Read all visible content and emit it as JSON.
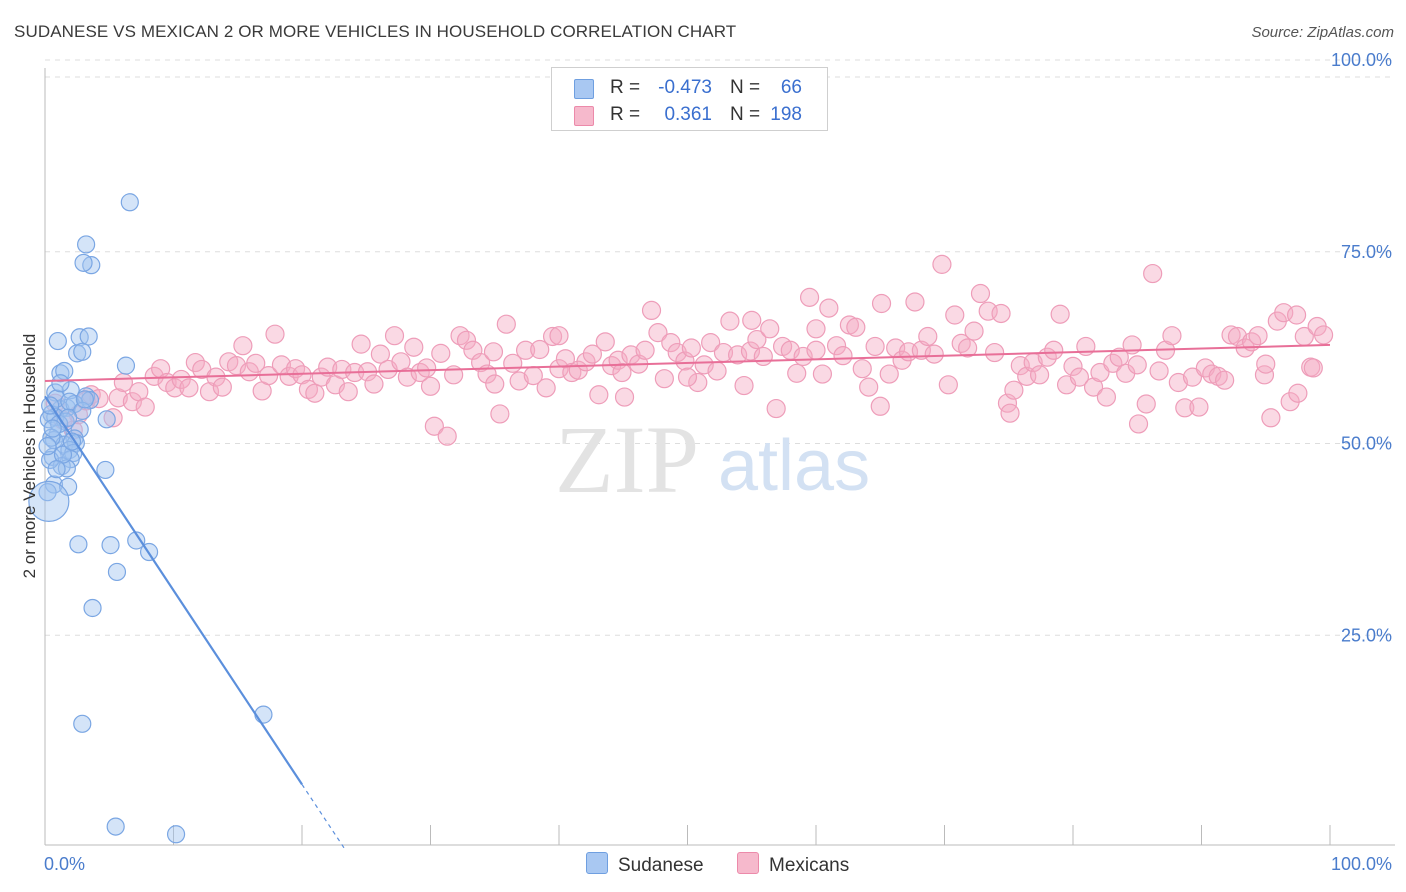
{
  "title": "SUDANESE VS MEXICAN 2 OR MORE VEHICLES IN HOUSEHOLD CORRELATION CHART",
  "source": "Source: ZipAtlas.com",
  "watermark": {
    "zip": "ZIP",
    "atlas": "atlas"
  },
  "legend": {
    "rows": [
      {
        "r_label": "R =",
        "r_value": "-0.473",
        "n_label": "N =",
        "n_value": "66",
        "color": "#a9c8f2",
        "border": "#6f9fe0"
      },
      {
        "r_label": "R =",
        "r_value": "0.361",
        "n_label": "N =",
        "n_value": "198",
        "color": "#f6b9cc",
        "border": "#ec8aaa"
      }
    ]
  },
  "bottom_legend": [
    {
      "label": "Sudanese",
      "color": "#a9c8f2",
      "border": "#6f9fe0"
    },
    {
      "label": "Mexicans",
      "color": "#f6b9cc",
      "border": "#ec8aaa"
    }
  ],
  "chart_data": {
    "type": "scatter",
    "title": "SUDANESE VS MEXICAN 2 OR MORE VEHICLES IN HOUSEHOLD CORRELATION CHART",
    "xlabel": "",
    "ylabel": "2 or more Vehicles in Household",
    "xlim": [
      0,
      100
    ],
    "ylim": [
      0,
      100
    ],
    "x_tick_labels": [
      "0.0%",
      "100.0%"
    ],
    "y_tick_labels": [
      "100.0%",
      "75.0%",
      "50.0%",
      "25.0%"
    ],
    "y_ticks": [
      100,
      75,
      50,
      25
    ],
    "grid": true,
    "series": [
      {
        "name": "Sudanese",
        "color": "#5b8fdc",
        "fill": "rgba(160,195,240,0.45)",
        "trend": {
          "x0": 0,
          "y0": 58.5,
          "x1": 20,
          "y1": 7.9,
          "dash_to_x": 23.3
        },
        "points": [
          [
            6.6,
            83.8
          ],
          [
            3.2,
            78.3
          ],
          [
            3.6,
            75.6
          ],
          [
            3.0,
            75.9
          ],
          [
            2.7,
            66.2
          ],
          [
            3.4,
            66.3
          ],
          [
            1.0,
            65.7
          ],
          [
            6.3,
            62.5
          ],
          [
            2.5,
            64.1
          ],
          [
            2.9,
            64.3
          ],
          [
            1.2,
            61.5
          ],
          [
            1.5,
            61.8
          ],
          [
            0.8,
            59.0
          ],
          [
            2.0,
            59.3
          ],
          [
            3.2,
            58.5
          ],
          [
            3.5,
            58.0
          ],
          [
            1.7,
            57.0
          ],
          [
            0.5,
            56.2
          ],
          [
            1.2,
            56.8
          ],
          [
            2.3,
            57.5
          ],
          [
            0.8,
            55.8
          ],
          [
            1.6,
            55.2
          ],
          [
            0.3,
            55.5
          ],
          [
            4.8,
            55.5
          ],
          [
            2.7,
            54.2
          ],
          [
            1.0,
            53.6
          ],
          [
            2.3,
            53.0
          ],
          [
            0.7,
            52.8
          ],
          [
            1.5,
            52.2
          ],
          [
            2.4,
            52.4
          ],
          [
            1.9,
            51.5
          ],
          [
            2.2,
            51.1
          ],
          [
            0.6,
            50.6
          ],
          [
            2.0,
            50.3
          ],
          [
            1.3,
            49.4
          ],
          [
            1.7,
            49.1
          ],
          [
            4.7,
            48.9
          ],
          [
            0.4,
            50.2
          ],
          [
            0.7,
            47.0
          ],
          [
            1.8,
            46.7
          ],
          [
            0.2,
            46.0
          ],
          [
            0.3,
            44.8
          ],
          [
            2.6,
            39.2
          ],
          [
            5.1,
            39.1
          ],
          [
            7.1,
            39.7
          ],
          [
            8.1,
            38.2
          ],
          [
            5.6,
            35.6
          ],
          [
            3.7,
            30.9
          ],
          [
            17.0,
            17.0
          ],
          [
            2.9,
            15.8
          ],
          [
            5.5,
            2.4
          ],
          [
            10.2,
            1.4
          ],
          [
            0.9,
            58.2
          ],
          [
            1.9,
            57.8
          ],
          [
            0.4,
            57.3
          ],
          [
            2.9,
            56.6
          ],
          [
            1.1,
            54.9
          ],
          [
            0.5,
            53.1
          ],
          [
            1.4,
            50.9
          ],
          [
            0.9,
            49.0
          ],
          [
            3.1,
            58.1
          ],
          [
            2.1,
            52.6
          ],
          [
            1.2,
            60.2
          ],
          [
            0.6,
            54.3
          ],
          [
            1.8,
            55.7
          ],
          [
            0.2,
            52.0
          ]
        ]
      },
      {
        "name": "Mexicans",
        "color": "#e86f98",
        "fill": "rgba(245,170,195,0.45)",
        "trend": {
          "x0": 0,
          "y0": 60.5,
          "x1": 100,
          "y1": 65.2
        },
        "points": [
          [
            0.8,
            57.6
          ],
          [
            1.4,
            55.4
          ],
          [
            2.2,
            54.1
          ],
          [
            2.6,
            56.1
          ],
          [
            3.2,
            57.9
          ],
          [
            3.6,
            58.7
          ],
          [
            4.2,
            58.2
          ],
          [
            5.3,
            55.7
          ],
          [
            5.7,
            58.3
          ],
          [
            6.1,
            60.3
          ],
          [
            6.8,
            57.8
          ],
          [
            7.3,
            59.1
          ],
          [
            7.8,
            57.1
          ],
          [
            8.5,
            61.1
          ],
          [
            9.0,
            62.1
          ],
          [
            9.5,
            60.3
          ],
          [
            10.1,
            59.6
          ],
          [
            10.6,
            60.7
          ],
          [
            11.2,
            59.6
          ],
          [
            11.7,
            62.9
          ],
          [
            12.2,
            62.0
          ],
          [
            12.8,
            59.1
          ],
          [
            13.3,
            61.0
          ],
          [
            13.8,
            59.7
          ],
          [
            14.3,
            63.0
          ],
          [
            14.9,
            62.5
          ],
          [
            15.4,
            65.1
          ],
          [
            15.9,
            61.7
          ],
          [
            16.4,
            62.8
          ],
          [
            16.9,
            59.2
          ],
          [
            17.4,
            61.2
          ],
          [
            17.9,
            66.6
          ],
          [
            18.4,
            62.6
          ],
          [
            19.0,
            61.1
          ],
          [
            19.5,
            62.1
          ],
          [
            20.0,
            61.3
          ],
          [
            20.5,
            59.4
          ],
          [
            21.0,
            58.9
          ],
          [
            21.5,
            61.0
          ],
          [
            22.0,
            62.3
          ],
          [
            22.6,
            60.0
          ],
          [
            23.1,
            62.0
          ],
          [
            23.6,
            59.1
          ],
          [
            24.1,
            61.6
          ],
          [
            24.6,
            65.3
          ],
          [
            25.1,
            61.7
          ],
          [
            25.6,
            60.1
          ],
          [
            26.1,
            64.0
          ],
          [
            26.7,
            62.0
          ],
          [
            27.2,
            66.4
          ],
          [
            27.7,
            63.0
          ],
          [
            28.2,
            61.0
          ],
          [
            28.7,
            64.9
          ],
          [
            29.2,
            61.6
          ],
          [
            29.7,
            62.2
          ],
          [
            30.3,
            54.6
          ],
          [
            30.8,
            64.1
          ],
          [
            31.3,
            53.3
          ],
          [
            31.8,
            61.3
          ],
          [
            32.3,
            66.4
          ],
          [
            32.8,
            65.8
          ],
          [
            33.3,
            64.5
          ],
          [
            33.9,
            62.9
          ],
          [
            34.4,
            61.4
          ],
          [
            34.9,
            64.3
          ],
          [
            35.4,
            56.2
          ],
          [
            35.9,
            67.9
          ],
          [
            36.4,
            62.8
          ],
          [
            36.9,
            60.5
          ],
          [
            37.4,
            64.5
          ],
          [
            38.0,
            61.2
          ],
          [
            38.5,
            64.6
          ],
          [
            39.0,
            59.6
          ],
          [
            39.5,
            66.3
          ],
          [
            40.0,
            62.1
          ],
          [
            40.5,
            63.4
          ],
          [
            41.0,
            61.6
          ],
          [
            41.5,
            61.9
          ],
          [
            42.1,
            63.0
          ],
          [
            42.6,
            64.0
          ],
          [
            43.1,
            58.7
          ],
          [
            43.6,
            65.6
          ],
          [
            44.1,
            62.5
          ],
          [
            44.6,
            63.2
          ],
          [
            45.1,
            58.4
          ],
          [
            45.6,
            63.9
          ],
          [
            46.2,
            62.7
          ],
          [
            46.7,
            64.5
          ],
          [
            47.2,
            69.7
          ],
          [
            47.7,
            66.8
          ],
          [
            48.2,
            60.8
          ],
          [
            48.7,
            65.5
          ],
          [
            49.2,
            64.2
          ],
          [
            49.8,
            63.1
          ],
          [
            50.3,
            64.8
          ],
          [
            50.8,
            60.3
          ],
          [
            51.3,
            62.6
          ],
          [
            51.8,
            65.5
          ],
          [
            52.3,
            61.8
          ],
          [
            52.8,
            64.2
          ],
          [
            53.3,
            68.3
          ],
          [
            53.9,
            63.9
          ],
          [
            54.4,
            59.9
          ],
          [
            54.9,
            64.4
          ],
          [
            55.4,
            65.9
          ],
          [
            55.9,
            63.7
          ],
          [
            56.4,
            67.3
          ],
          [
            56.9,
            56.9
          ],
          [
            57.4,
            65.0
          ],
          [
            58.0,
            64.5
          ],
          [
            58.5,
            61.5
          ],
          [
            59.0,
            63.7
          ],
          [
            59.5,
            71.4
          ],
          [
            60.0,
            67.3
          ],
          [
            60.5,
            61.4
          ],
          [
            61.0,
            70.0
          ],
          [
            61.6,
            65.1
          ],
          [
            62.1,
            63.8
          ],
          [
            62.6,
            67.8
          ],
          [
            63.1,
            67.5
          ],
          [
            63.6,
            62.1
          ],
          [
            64.1,
            59.7
          ],
          [
            64.6,
            65.0
          ],
          [
            65.1,
            70.6
          ],
          [
            65.7,
            61.4
          ],
          [
            66.2,
            64.8
          ],
          [
            66.7,
            63.2
          ],
          [
            67.2,
            64.3
          ],
          [
            67.7,
            70.8
          ],
          [
            68.2,
            64.5
          ],
          [
            68.7,
            66.3
          ],
          [
            69.2,
            64.0
          ],
          [
            69.8,
            75.7
          ],
          [
            70.3,
            60.0
          ],
          [
            70.8,
            69.1
          ],
          [
            71.3,
            65.4
          ],
          [
            71.8,
            64.8
          ],
          [
            72.3,
            67.0
          ],
          [
            72.8,
            71.9
          ],
          [
            73.4,
            69.6
          ],
          [
            73.9,
            64.2
          ],
          [
            74.4,
            69.3
          ],
          [
            74.9,
            57.6
          ],
          [
            75.4,
            59.3
          ],
          [
            75.9,
            62.5
          ],
          [
            76.4,
            61.1
          ],
          [
            76.9,
            62.9
          ],
          [
            77.4,
            61.3
          ],
          [
            78.0,
            63.6
          ],
          [
            78.5,
            64.5
          ],
          [
            79.0,
            69.2
          ],
          [
            79.5,
            60.0
          ],
          [
            80.0,
            62.4
          ],
          [
            80.5,
            61.0
          ],
          [
            81.0,
            65.0
          ],
          [
            81.6,
            59.7
          ],
          [
            82.1,
            61.6
          ],
          [
            82.6,
            58.4
          ],
          [
            83.1,
            62.8
          ],
          [
            83.6,
            63.6
          ],
          [
            84.1,
            61.5
          ],
          [
            84.6,
            65.2
          ],
          [
            85.1,
            54.9
          ],
          [
            85.7,
            57.5
          ],
          [
            86.2,
            74.5
          ],
          [
            86.7,
            61.8
          ],
          [
            87.2,
            64.5
          ],
          [
            87.7,
            66.4
          ],
          [
            88.2,
            60.3
          ],
          [
            88.7,
            57.0
          ],
          [
            89.3,
            61.0
          ],
          [
            89.8,
            57.1
          ],
          [
            90.3,
            62.2
          ],
          [
            90.8,
            61.4
          ],
          [
            91.3,
            61.1
          ],
          [
            91.8,
            60.6
          ],
          [
            92.3,
            66.5
          ],
          [
            92.8,
            66.3
          ],
          [
            93.4,
            64.8
          ],
          [
            93.9,
            65.6
          ],
          [
            94.4,
            66.4
          ],
          [
            94.9,
            61.3
          ],
          [
            95.4,
            55.7
          ],
          [
            95.9,
            68.3
          ],
          [
            96.4,
            69.4
          ],
          [
            96.9,
            57.8
          ],
          [
            97.5,
            58.9
          ],
          [
            98.0,
            66.3
          ],
          [
            98.5,
            62.3
          ],
          [
            99.0,
            67.6
          ],
          [
            99.5,
            66.5
          ],
          [
            98.7,
            62.2
          ],
          [
            97.4,
            69.1
          ],
          [
            35.0,
            60.1
          ],
          [
            44.9,
            61.6
          ],
          [
            55.0,
            68.4
          ],
          [
            65.0,
            57.2
          ],
          [
            75.1,
            56.3
          ],
          [
            85.0,
            62.6
          ],
          [
            95.0,
            62.7
          ],
          [
            30.0,
            59.8
          ],
          [
            40.0,
            66.4
          ],
          [
            50.0,
            61.0
          ],
          [
            60.0,
            64.5
          ]
        ]
      }
    ]
  }
}
